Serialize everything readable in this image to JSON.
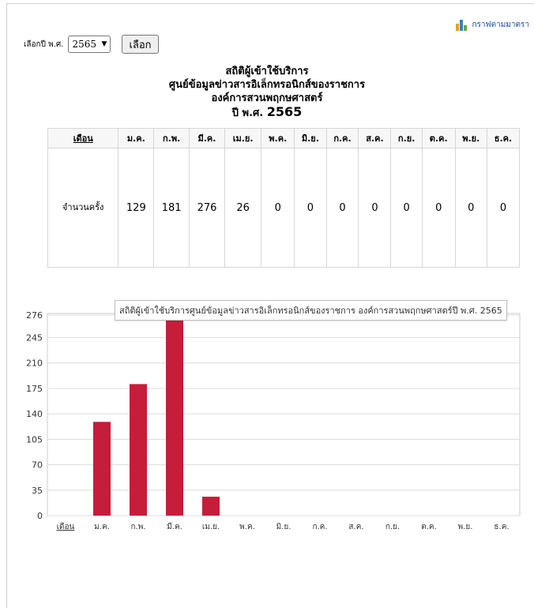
{
  "graph_link": {
    "label": "กราฟตามมาตรา",
    "icon": "bar-chart-icon"
  },
  "year_form": {
    "label": "เลือกปี พ.ศ.",
    "selected_year": "2565",
    "submit_label": "เลือก"
  },
  "title": {
    "line1": "สถิติผู้เข้าใช้บริการ",
    "line2": "ศูนย์ข้อมูลข่าวสารอิเล็กทรอนิกส์ของราชการ",
    "line3": "องค์การสวนพฤกษศาสตร์",
    "line4_prefix": "ปี พ.ศ. ",
    "line4_year": "2565"
  },
  "table": {
    "header_label": "เดือน",
    "months": [
      "ม.ค.",
      "ก.พ.",
      "มี.ค.",
      "เม.ย.",
      "พ.ค.",
      "มิ.ย.",
      "ก.ค.",
      "ส.ค.",
      "ก.ย.",
      "ต.ค.",
      "พ.ย.",
      "ธ.ค."
    ],
    "row_label": "จำนวนครั้ง",
    "values": [
      "129",
      "181",
      "276",
      "26",
      "0",
      "0",
      "0",
      "0",
      "0",
      "0",
      "0",
      "0"
    ]
  },
  "chart_data": {
    "type": "bar",
    "title": "สถิติผู้เข้าใช้บริการศูนย์ข้อมูลข่าวสารอิเล็กทรอนิกส์ของราชการ องค์การสวนพฤกษศาสตร์ปี พ.ศ. 2565",
    "categories": [
      "เดือน",
      "ม.ค.",
      "ก.พ.",
      "มี.ค.",
      "เม.ย.",
      "พ.ค.",
      "มิ.ย.",
      "ก.ค.",
      "ส.ค.",
      "ก.ย.",
      "ต.ค.",
      "พ.ย.",
      "ธ.ค."
    ],
    "values": [
      null,
      129,
      181,
      276,
      26,
      0,
      0,
      0,
      0,
      0,
      0,
      0,
      0
    ],
    "yticks": [
      0,
      35,
      70,
      105,
      140,
      175,
      210,
      245,
      276
    ],
    "ylim": [
      0,
      276
    ],
    "grid": true,
    "bar_color": "#c41e3a"
  }
}
